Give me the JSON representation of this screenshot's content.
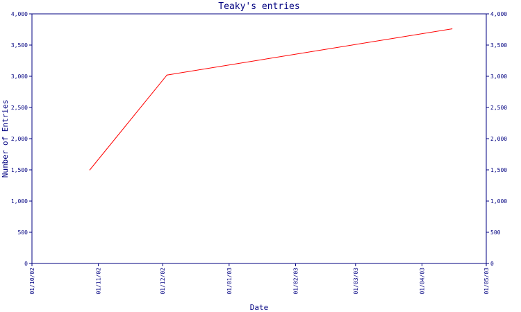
{
  "chart_data": {
    "type": "line",
    "title": "Teaky's entries",
    "xlabel": "Date",
    "ylabel": "Number of Entries",
    "x_ticks": [
      "01/10/02",
      "01/11/02",
      "01/12/02",
      "01/01/03",
      "01/02/03",
      "01/03/03",
      "01/04/03",
      "01/05/03"
    ],
    "y_ticks": [
      "0",
      "500",
      "1,000",
      "1,500",
      "2,000",
      "2,500",
      "3,000",
      "3,500",
      "4,000"
    ],
    "ylim": [
      0,
      4000
    ],
    "xlim": [
      "2002-10-01",
      "2003-05-01"
    ],
    "grid": false,
    "y_axis_labels_both_sides": true,
    "series": [
      {
        "color": "#ff0000",
        "points": [
          {
            "x": "2002-10-28",
            "y": 1500
          },
          {
            "x": "2002-12-03",
            "y": 3020
          },
          {
            "x": "2003-04-15",
            "y": 3760
          }
        ]
      }
    ]
  },
  "colors": {
    "axis": "#000080",
    "text": "#000080",
    "background": "#ffffff"
  }
}
